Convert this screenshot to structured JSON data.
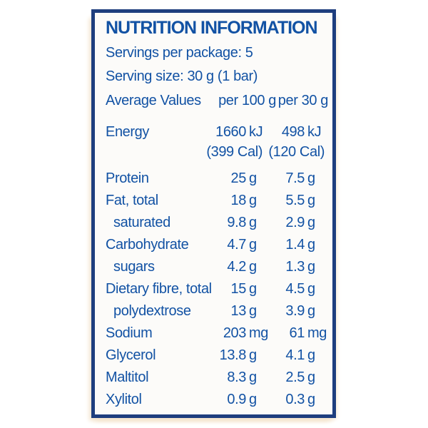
{
  "panel": {
    "title": "NUTRITION INFORMATION",
    "servings_line": "Servings per package: 5",
    "serving_size_line": "Serving size: 30 g (1 bar)",
    "columns": {
      "label": "Average Values",
      "per100": "per 100 g",
      "per30": "per 30 g"
    },
    "rows": [
      {
        "label": "Energy",
        "indent": false,
        "per100": {
          "num": "1660",
          "unit": "kJ"
        },
        "per30": {
          "num": "498",
          "unit": "kJ"
        }
      },
      {
        "label": "",
        "indent": false,
        "per100": {
          "num": "(399 Cal)",
          "unit": ""
        },
        "per30": {
          "num": "(120 Cal)",
          "unit": ""
        }
      },
      {
        "label": "Protein",
        "indent": false,
        "per100": {
          "num": "25",
          "unit": "g"
        },
        "per30": {
          "num": "7.5",
          "unit": "g"
        }
      },
      {
        "label": "Fat, total",
        "indent": false,
        "per100": {
          "num": "18",
          "unit": "g"
        },
        "per30": {
          "num": "5.5",
          "unit": "g"
        }
      },
      {
        "label": "saturated",
        "indent": true,
        "per100": {
          "num": "9.8",
          "unit": "g"
        },
        "per30": {
          "num": "2.9",
          "unit": "g"
        }
      },
      {
        "label": "Carbohydrate",
        "indent": false,
        "per100": {
          "num": "4.7",
          "unit": "g"
        },
        "per30": {
          "num": "1.4",
          "unit": "g"
        }
      },
      {
        "label": "sugars",
        "indent": true,
        "per100": {
          "num": "4.2",
          "unit": "g"
        },
        "per30": {
          "num": "1.3",
          "unit": "g"
        }
      },
      {
        "label": "Dietary fibre, total",
        "indent": false,
        "per100": {
          "num": "15",
          "unit": "g"
        },
        "per30": {
          "num": "4.5",
          "unit": "g"
        }
      },
      {
        "label": "polydextrose",
        "indent": true,
        "per100": {
          "num": "13",
          "unit": "g"
        },
        "per30": {
          "num": "3.9",
          "unit": "g"
        }
      },
      {
        "label": "Sodium",
        "indent": false,
        "per100": {
          "num": "203",
          "unit": "mg"
        },
        "per30": {
          "num": "61",
          "unit": "mg"
        }
      },
      {
        "label": "Glycerol",
        "indent": false,
        "per100": {
          "num": "13.8",
          "unit": "g"
        },
        "per30": {
          "num": "4.1",
          "unit": "g"
        }
      },
      {
        "label": "Maltitol",
        "indent": false,
        "per100": {
          "num": "8.3",
          "unit": "g"
        },
        "per30": {
          "num": "2.5",
          "unit": "g"
        }
      },
      {
        "label": "Xylitol",
        "indent": false,
        "per100": {
          "num": "0.9",
          "unit": "g"
        },
        "per30": {
          "num": "0.3",
          "unit": "g"
        }
      }
    ],
    "colors": {
      "text_blue": "#1252a4",
      "border_navy": "#1e3e7e",
      "panel_background": "#fcfbf9",
      "page_background": "#ffffff",
      "halo_cream": "#f4e5cf"
    }
  }
}
